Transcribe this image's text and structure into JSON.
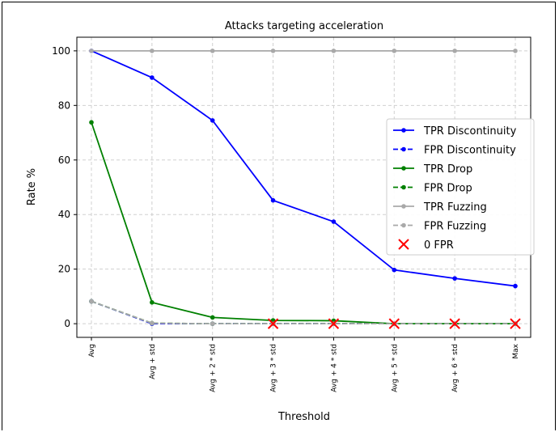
{
  "chart_data": {
    "type": "line",
    "title": "Attacks targeting acceleration",
    "xlabel": "Threshold",
    "ylabel": "Rate %",
    "categories": [
      "Avg",
      "Avg + std",
      "Avg + 2 * std",
      "Avg + 3 * std",
      "Avg + 4 * std",
      "Avg + 5 * std",
      "Avg + 6 * std",
      "Max"
    ],
    "ylim": [
      -5,
      105
    ],
    "yticks": [
      0,
      20,
      40,
      60,
      80,
      100
    ],
    "grid": true,
    "legend_position": "center-right",
    "series": [
      {
        "name": "TPR Discontinuity",
        "color": "#0000ff",
        "style": "solid",
        "values": [
          100,
          90.2,
          74.5,
          45.2,
          37.4,
          19.7,
          16.6,
          13.8
        ]
      },
      {
        "name": "FPR Discontinuity",
        "color": "#0000ff",
        "style": "dashed",
        "values": [
          8.2,
          0,
          0,
          0,
          0,
          0,
          0,
          0
        ]
      },
      {
        "name": "TPR Drop",
        "color": "#008000",
        "style": "solid",
        "values": [
          73.8,
          7.8,
          2.3,
          1.2,
          1.1,
          0,
          0,
          0
        ]
      },
      {
        "name": "FPR Drop",
        "color": "#008000",
        "style": "dashed",
        "values": [
          8.2,
          0.2,
          0,
          0,
          0,
          0,
          0,
          0
        ]
      },
      {
        "name": "TPR Fuzzing",
        "color": "#a9a9a9",
        "style": "solid",
        "values": [
          100,
          100,
          100,
          100,
          100,
          100,
          100,
          100
        ]
      },
      {
        "name": "FPR Fuzzing",
        "color": "#a9a9a9",
        "style": "dashed",
        "values": [
          8.2,
          0.2,
          0,
          0,
          0,
          0,
          0,
          0
        ]
      }
    ],
    "markers": {
      "name": "0 FPR",
      "color": "#ff0000",
      "symbol": "x",
      "categories": [
        "Avg + 3 * std",
        "Avg + 4 * std",
        "Avg + 5 * std",
        "Avg + 6 * std",
        "Max"
      ],
      "values": [
        0,
        0,
        0,
        0,
        0
      ]
    }
  }
}
